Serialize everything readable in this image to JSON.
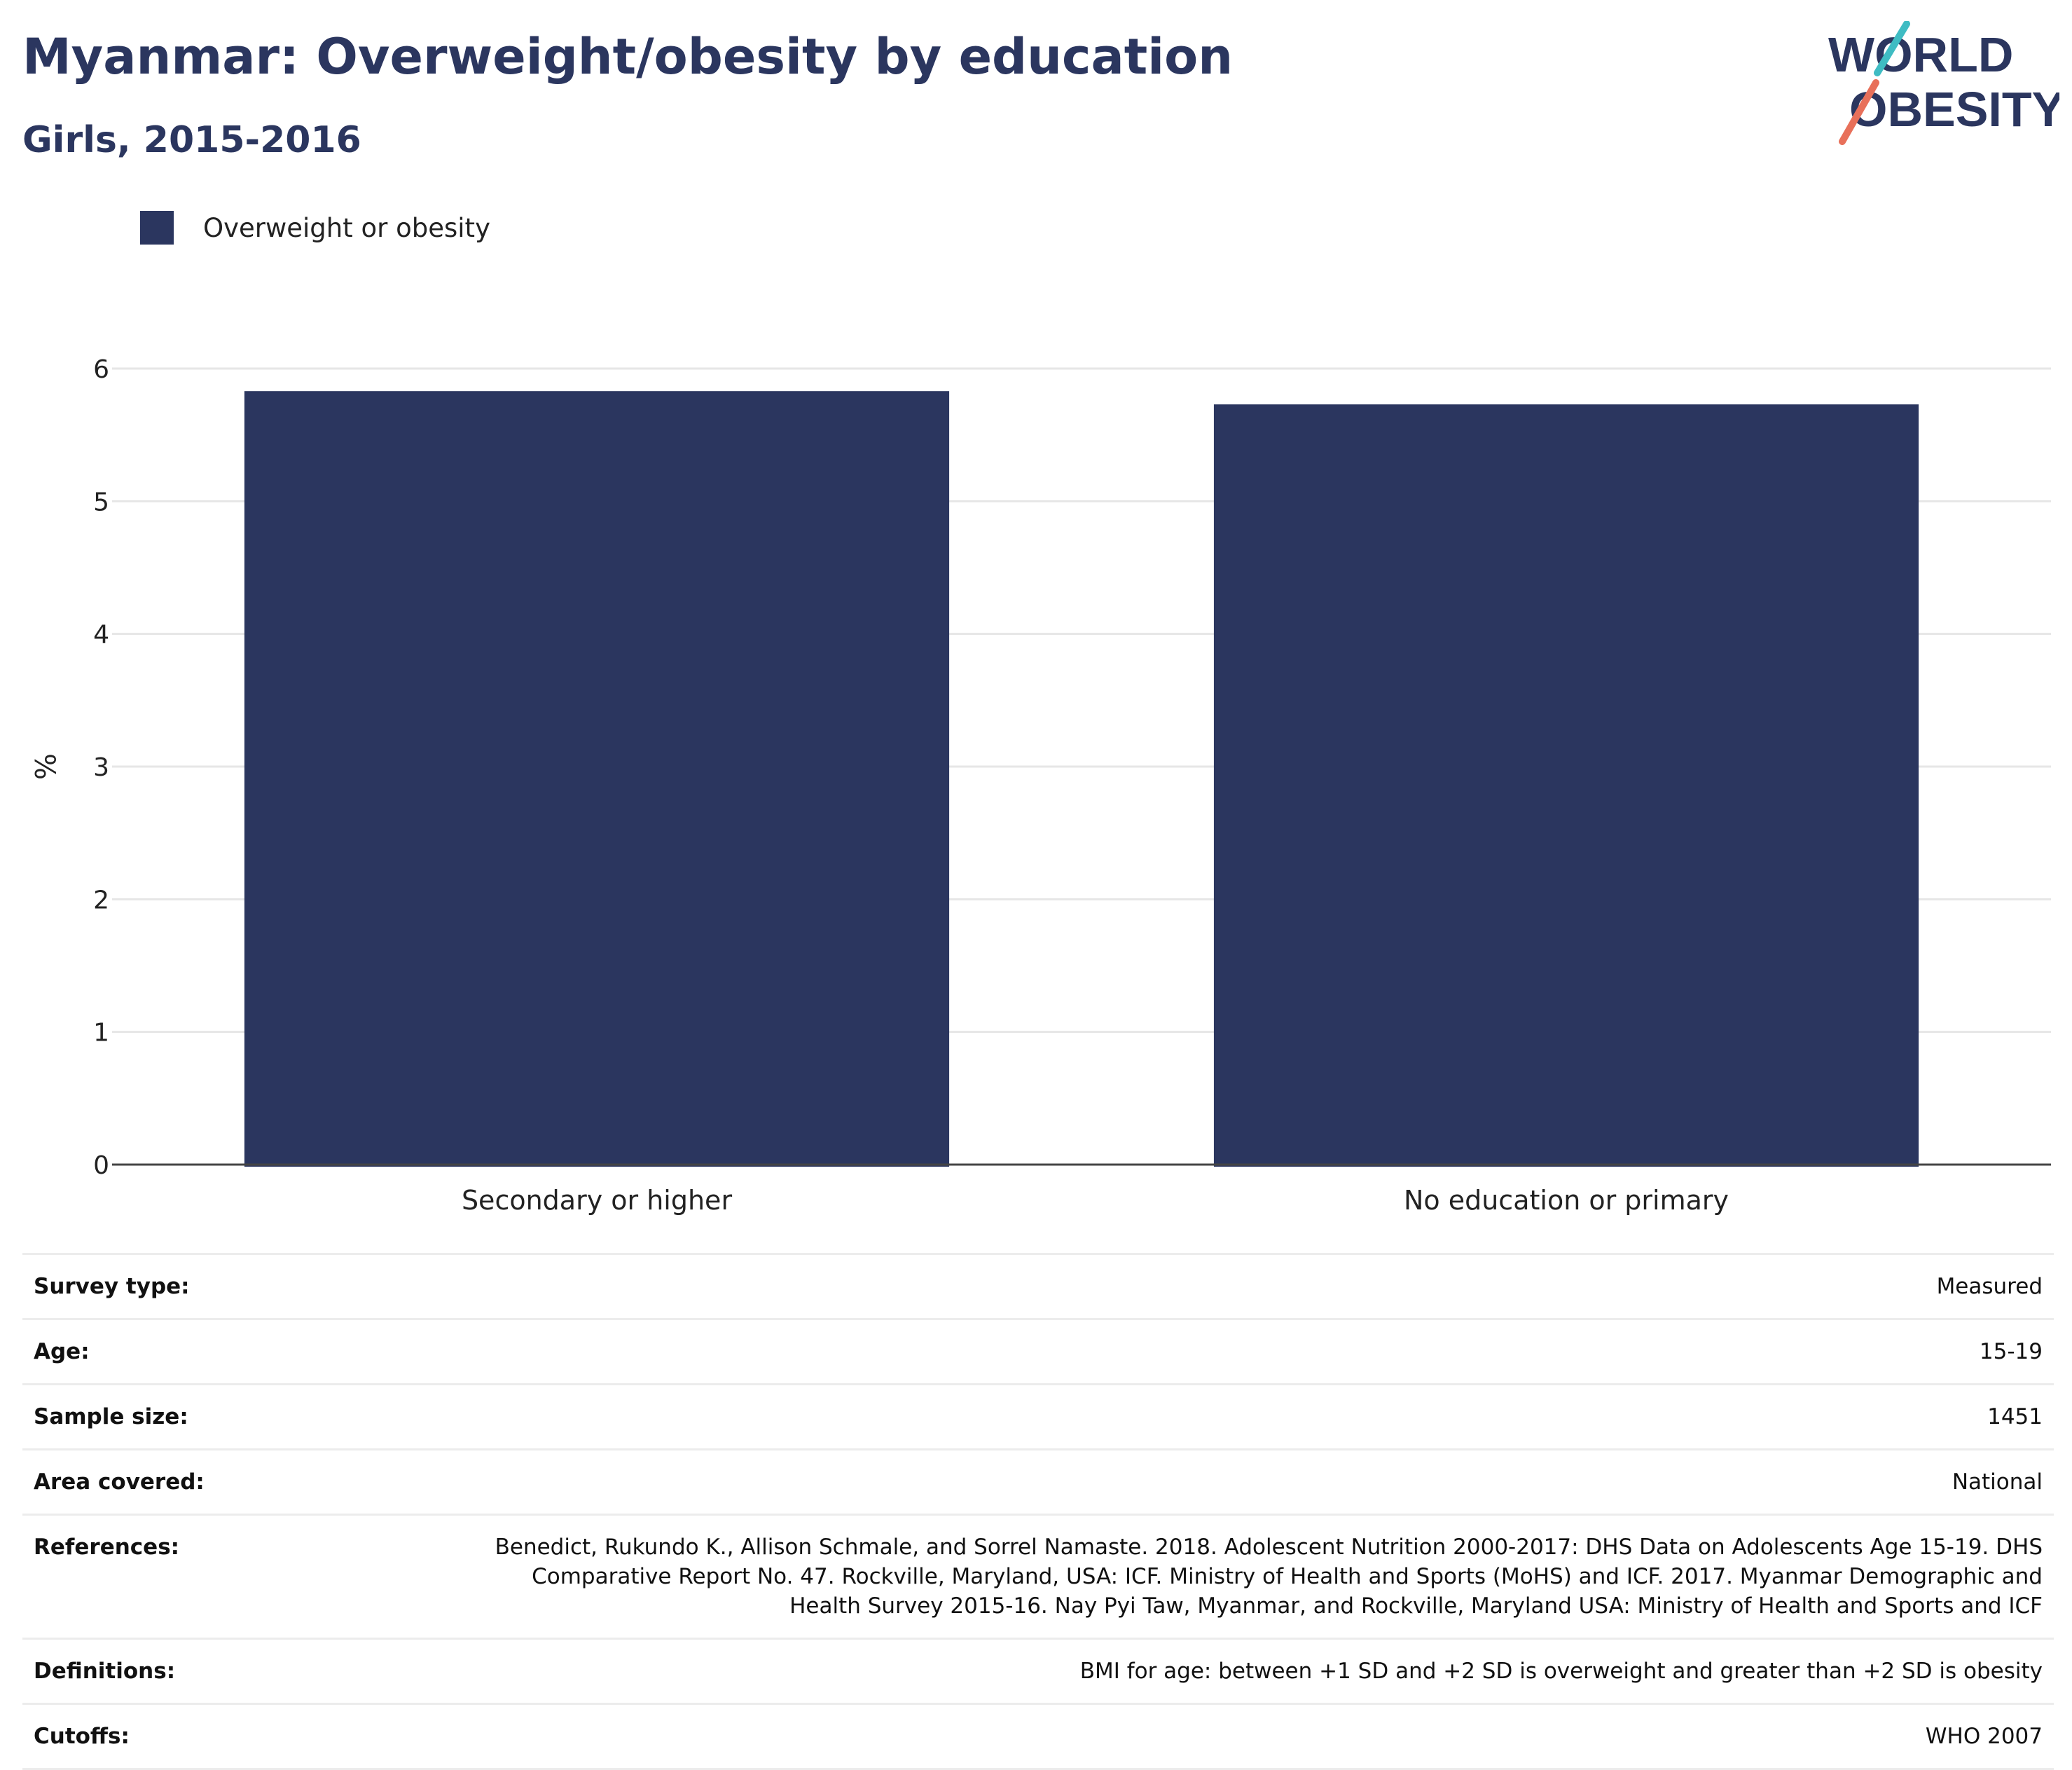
{
  "header": {
    "title": "Myanmar: Overweight/obesity by education",
    "subtitle": "Girls, 2015-2016"
  },
  "logo": {
    "line1": "WORLD",
    "line2": "OBESITY"
  },
  "legend": {
    "label": "Overweight or obesity",
    "color": "#2b365f"
  },
  "chart_data": {
    "type": "bar",
    "categories": [
      "Secondary or higher",
      "No education or primary"
    ],
    "series": [
      {
        "name": "Overweight or obesity",
        "values": [
          5.83,
          5.73
        ],
        "color": "#2b365f"
      }
    ],
    "ylabel": "%",
    "ylim": [
      0,
      6
    ],
    "yticks": [
      0,
      1,
      2,
      3,
      4,
      5,
      6
    ],
    "grid": true,
    "legend_position": "top-left"
  },
  "info": [
    {
      "label": "Survey type:",
      "value": "Measured"
    },
    {
      "label": "Age:",
      "value": "15-19"
    },
    {
      "label": "Sample size:",
      "value": "1451"
    },
    {
      "label": "Area covered:",
      "value": "National"
    },
    {
      "label": "References:",
      "value": "Benedict, Rukundo K., Allison Schmale, and Sorrel Namaste. 2018. Adolescent Nutrition 2000-2017: DHS Data on Adolescents Age 15-19. DHS Comparative Report No. 47. Rockville, Maryland, USA: ICF. Ministry of Health and Sports (MoHS) and ICF. 2017. Myanmar Demographic and Health Survey 2015-16. Nay Pyi Taw, Myanmar, and Rockville, Maryland USA: Ministry of Health and Sports and ICF"
    },
    {
      "label": "Definitions:",
      "value": "BMI for age: between +1 SD and +2 SD is overweight and greater than +2 SD is obesity"
    },
    {
      "label": "Cutoffs:",
      "value": "WHO 2007"
    }
  ]
}
